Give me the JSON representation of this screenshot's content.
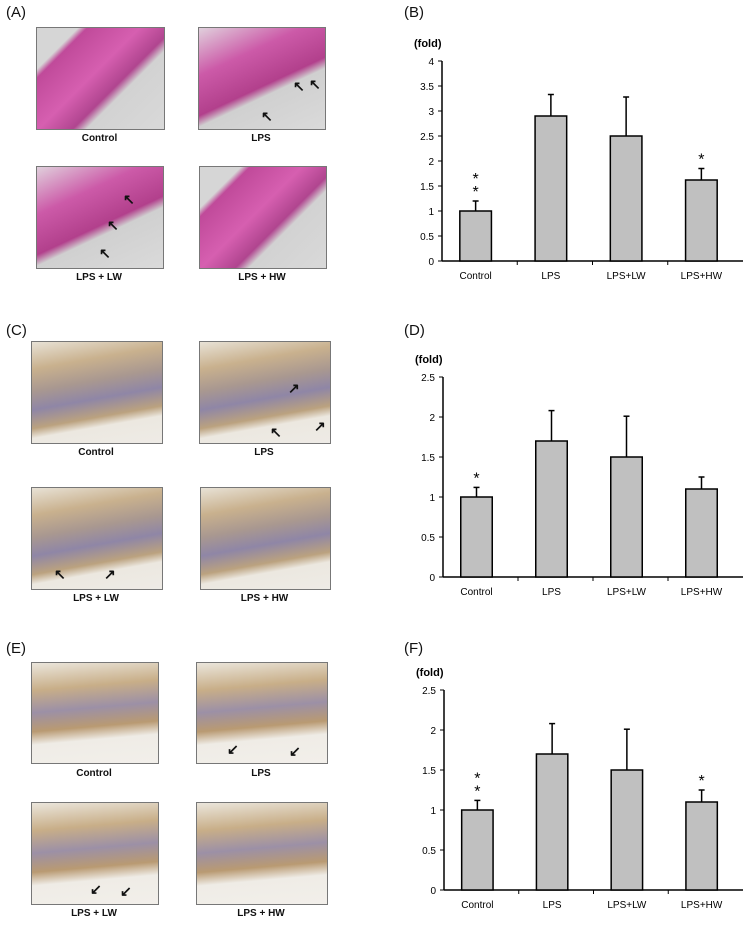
{
  "panels": {
    "A": {
      "label": "(A)",
      "captions": [
        "Control",
        "LPS",
        "LPS + LW",
        "LPS + HW"
      ]
    },
    "C": {
      "label": "(C)",
      "captions": [
        "Control",
        "LPS",
        "LPS + LW",
        "LPS + HW"
      ]
    },
    "E": {
      "label": "(E)",
      "captions": [
        "Control",
        "LPS",
        "LPS + LW",
        "LPS + HW"
      ]
    },
    "B": {
      "label": "(B)"
    },
    "D": {
      "label": "(D)"
    },
    "F": {
      "label": "(F)"
    }
  },
  "chart_data": [
    {
      "id": "B",
      "type": "bar",
      "title": "",
      "ylabel": "(fold)",
      "xlabel": "",
      "categories": [
        "Control",
        "LPS",
        "LPS+LW",
        "LPS+HW"
      ],
      "values": [
        1.0,
        2.9,
        2.5,
        1.62
      ],
      "error_upper": [
        1.2,
        3.33,
        3.28,
        1.85
      ],
      "significance": [
        "**",
        "",
        "",
        "*"
      ],
      "ylim": [
        0,
        4
      ],
      "yticks": [
        "0",
        "0.5",
        "1",
        "1.5",
        "2",
        "2.5",
        "3",
        "3.5",
        "4"
      ],
      "grid": false,
      "bar_color": "#c0c0c0"
    },
    {
      "id": "D",
      "type": "bar",
      "title": "",
      "ylabel": "(fold)",
      "xlabel": "",
      "categories": [
        "Control",
        "LPS",
        "LPS+LW",
        "LPS+HW"
      ],
      "values": [
        1.0,
        1.7,
        1.5,
        1.1
      ],
      "error_upper": [
        1.12,
        2.08,
        2.01,
        1.25
      ],
      "significance": [
        "*",
        "",
        "",
        ""
      ],
      "ylim": [
        0,
        2.5
      ],
      "yticks": [
        "0",
        "0.5",
        "1",
        "1.5",
        "2",
        "2.5"
      ],
      "grid": false,
      "bar_color": "#c0c0c0"
    },
    {
      "id": "F",
      "type": "bar",
      "title": "",
      "ylabel": "(fold)",
      "xlabel": "",
      "categories": [
        "Control",
        "LPS",
        "LPS+LW",
        "LPS+HW"
      ],
      "values": [
        1.0,
        1.7,
        1.5,
        1.1
      ],
      "error_upper": [
        1.12,
        2.08,
        2.01,
        1.25
      ],
      "significance": [
        "**",
        "",
        "",
        "*"
      ],
      "ylim": [
        0,
        2.5
      ],
      "yticks": [
        "0",
        "0.5",
        "1",
        "1.5",
        "2",
        "2.5"
      ],
      "grid": false,
      "bar_color": "#c0c0c0"
    }
  ]
}
